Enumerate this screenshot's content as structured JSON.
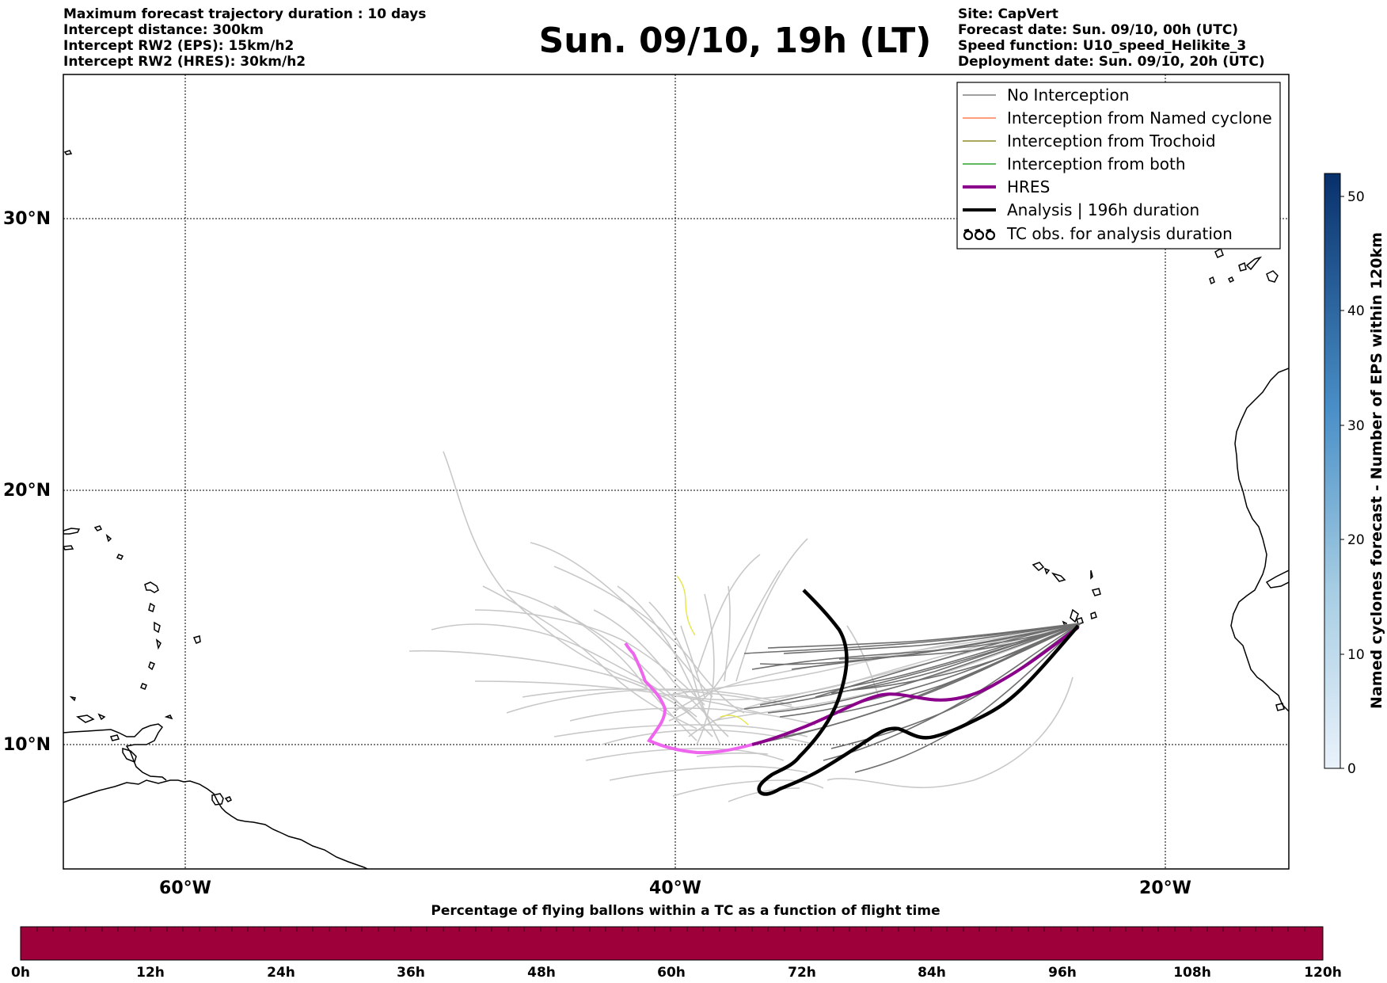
{
  "title": "Sun. 09/10, 19h (LT)",
  "header_left": [
    "Maximum forecast trajectory duration : 10 days",
    "Intercept distance: 300km",
    "Intercept RW2 (EPS):  15km/h2",
    "Intercept RW2 (HRES): 30km/h2"
  ],
  "header_right": [
    "Site: CapVert",
    "Forecast date: Sun. 09/10, 00h (UTC)",
    "Speed function: U10_speed_Helikite_3",
    "Deployment date: Sun. 09/10, 20h (UTC)"
  ],
  "map": {
    "lat_labels": [
      "30°N",
      "20°N",
      "10°N"
    ],
    "lon_labels": [
      "60°W",
      "40°W",
      "20°W"
    ]
  },
  "legend": [
    {
      "label": "No Interception",
      "color": "#808080",
      "icon": "line-thin"
    },
    {
      "label": "Interception from Named cyclone",
      "color": "#ff7f50",
      "icon": "line-thin"
    },
    {
      "label": "Interception from Trochoid",
      "color": "#8b8b2a",
      "icon": "line-thin"
    },
    {
      "label": "Interception from both",
      "color": "#2ca02c",
      "icon": "line-thin"
    },
    {
      "label": "HRES",
      "color": "#8b008b",
      "icon": "line-thick"
    },
    {
      "label": "Analysis | 196h duration",
      "color": "#000000",
      "icon": "line-thick"
    },
    {
      "label": "TC obs. for analysis duration",
      "color": "#000000",
      "icon": "cyclone-symbols-icon"
    }
  ],
  "colorbar": {
    "label": "Named cyclones forecast - Number of EPS within 120km",
    "ticks": [
      "0",
      "10",
      "20",
      "30",
      "40",
      "50"
    ],
    "color_low": "#eaf2fb",
    "color_high": "#08306b"
  },
  "bottom_bar": {
    "label": "Percentage of flying ballons within a TC as a function of flight time",
    "color": "#9e003a",
    "ticks": [
      "0h",
      "12h",
      "24h",
      "36h",
      "48h",
      "60h",
      "72h",
      "84h",
      "96h",
      "108h",
      "120h"
    ]
  }
}
